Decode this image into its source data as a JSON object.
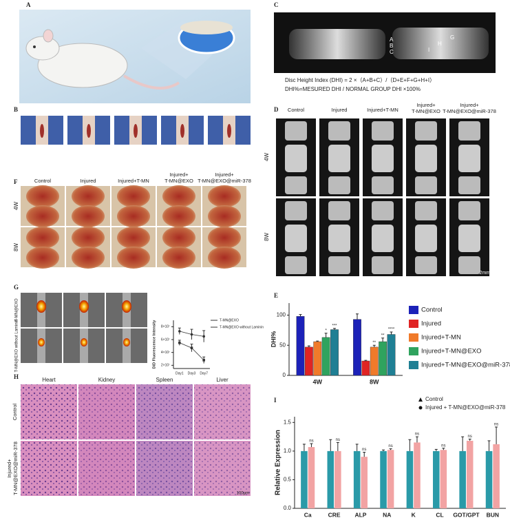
{
  "figure": {
    "panel_labels": [
      "A",
      "B",
      "C",
      "D",
      "E",
      "F",
      "G",
      "H",
      "I"
    ],
    "dhi_formula": "Disc Height Index (DHI) = 2 ×（A+B+C）/（D+E+F+G+H+I）",
    "dhi_percent": "DHI%=MESURED DHI / NORMAL GROUP DHI ×100%",
    "xray_letters": [
      "A",
      "B",
      "C",
      "G",
      "H",
      "I"
    ],
    "group_labels": [
      [
        "Control"
      ],
      [
        "Injured"
      ],
      [
        "Injured+T-MN"
      ],
      [
        "Injured+",
        "T-MN@EXO"
      ],
      [
        "Injured+",
        "T-MN@EXO@miR-378"
      ]
    ],
    "time_labels": [
      "4W",
      "8W"
    ],
    "scale_d": "2mm",
    "g_rows": [
      "T-MN@EXO",
      "T-MN@EXO without Laminin"
    ],
    "h_columns": [
      "Heart",
      "Kidney",
      "Spleen",
      "Liver"
    ],
    "h_rows": [
      [
        "Control"
      ],
      [
        "Injured+",
        "T-MN@EXO@miR-378"
      ]
    ],
    "scale_h": "100μm"
  },
  "chart_data": [
    {
      "type": "bar",
      "panel": "E",
      "y_label": "DHI%",
      "categories": [
        "4W",
        "8W"
      ],
      "ylim": [
        0,
        120
      ],
      "yticks": [
        0,
        50,
        100
      ],
      "series": [
        {
          "name": "Control",
          "color": "#1c22b8",
          "values": [
            98,
            93
          ],
          "errors": [
            3,
            9
          ],
          "significance": [
            null,
            null
          ]
        },
        {
          "name": "Injured",
          "color": "#e02424",
          "values": [
            47,
            24
          ],
          "errors": [
            2,
            1
          ],
          "significance": [
            null,
            null
          ]
        },
        {
          "name": "Injured+T-MN",
          "color": "#f07a2a",
          "values": [
            56,
            47
          ],
          "errors": [
            1,
            3
          ],
          "significance": [
            null,
            "**"
          ]
        },
        {
          "name": "Injured+T-MN@EXO",
          "color": "#2fa35e",
          "values": [
            63,
            56
          ],
          "errors": [
            7,
            6
          ],
          "significance": [
            "*",
            "**"
          ]
        },
        {
          "name": "Injured+T-MN@EXO@miR-378",
          "color": "#1f7f94",
          "values": [
            76,
            68
          ],
          "errors": [
            2,
            4
          ],
          "significance": [
            "***",
            "****"
          ]
        }
      ]
    },
    {
      "type": "line",
      "panel": "G",
      "y_label": "DiD Fluorescence Intensity",
      "categories": [
        "Day1",
        "Day3",
        "Day7"
      ],
      "ylim": [
        15000000,
        90000000
      ],
      "yticks": [
        {
          "value": 20000000,
          "label": "2×10⁷"
        },
        {
          "value": 40000000,
          "label": "4×10⁷"
        },
        {
          "value": 60000000,
          "label": "6×10⁷"
        },
        {
          "value": 80000000,
          "label": "8×10⁷"
        }
      ],
      "series": [
        {
          "name": "T-MN@EXO",
          "color": "#333333",
          "values": [
            73000000,
            68000000,
            65000000
          ],
          "errors": [
            5000000,
            8000000,
            9000000
          ]
        },
        {
          "name": "T-MN@EXO without Laminin",
          "color": "#333333",
          "values": [
            55000000,
            47000000,
            28000000
          ],
          "errors": [
            4000000,
            6000000,
            5000000
          ]
        }
      ]
    },
    {
      "type": "bar",
      "panel": "I",
      "y_label": "Relative Expression",
      "categories": [
        "Ca",
        "CRE",
        "ALP",
        "NA",
        "K",
        "CL",
        "GOT/GPT",
        "BUN"
      ],
      "ylim": [
        0,
        1.6
      ],
      "yticks": [
        {
          "value": 0,
          "label": "0.0"
        },
        {
          "value": 0.5,
          "label": "0.5"
        },
        {
          "value": 1,
          "label": "1.0"
        },
        {
          "value": 1.5,
          "label": "1.5"
        }
      ],
      "series": [
        {
          "name": "Control",
          "color": "#2a9aa8",
          "marker": "triangle",
          "values": [
            1,
            1,
            1,
            1,
            1,
            1,
            1,
            1
          ],
          "errors": [
            0.12,
            0.2,
            0.12,
            0.02,
            0.2,
            0.03,
            0.25,
            0.18
          ],
          "significance": [
            null,
            null,
            null,
            null,
            null,
            null,
            null,
            null
          ]
        },
        {
          "name": "Injured + T-MN@EXO@miR-378",
          "color": "#f2a3a3",
          "marker": "circle",
          "values": [
            1.07,
            1,
            0.9,
            1.02,
            1.15,
            1.02,
            1.18,
            1.12
          ],
          "errors": [
            0.06,
            0.15,
            0.08,
            0.02,
            0.1,
            0.03,
            0.03,
            0.3
          ],
          "significance": [
            "ns",
            "ns",
            "ns",
            "ns",
            "ns",
            "ns",
            "ns",
            "ns"
          ]
        }
      ]
    }
  ]
}
